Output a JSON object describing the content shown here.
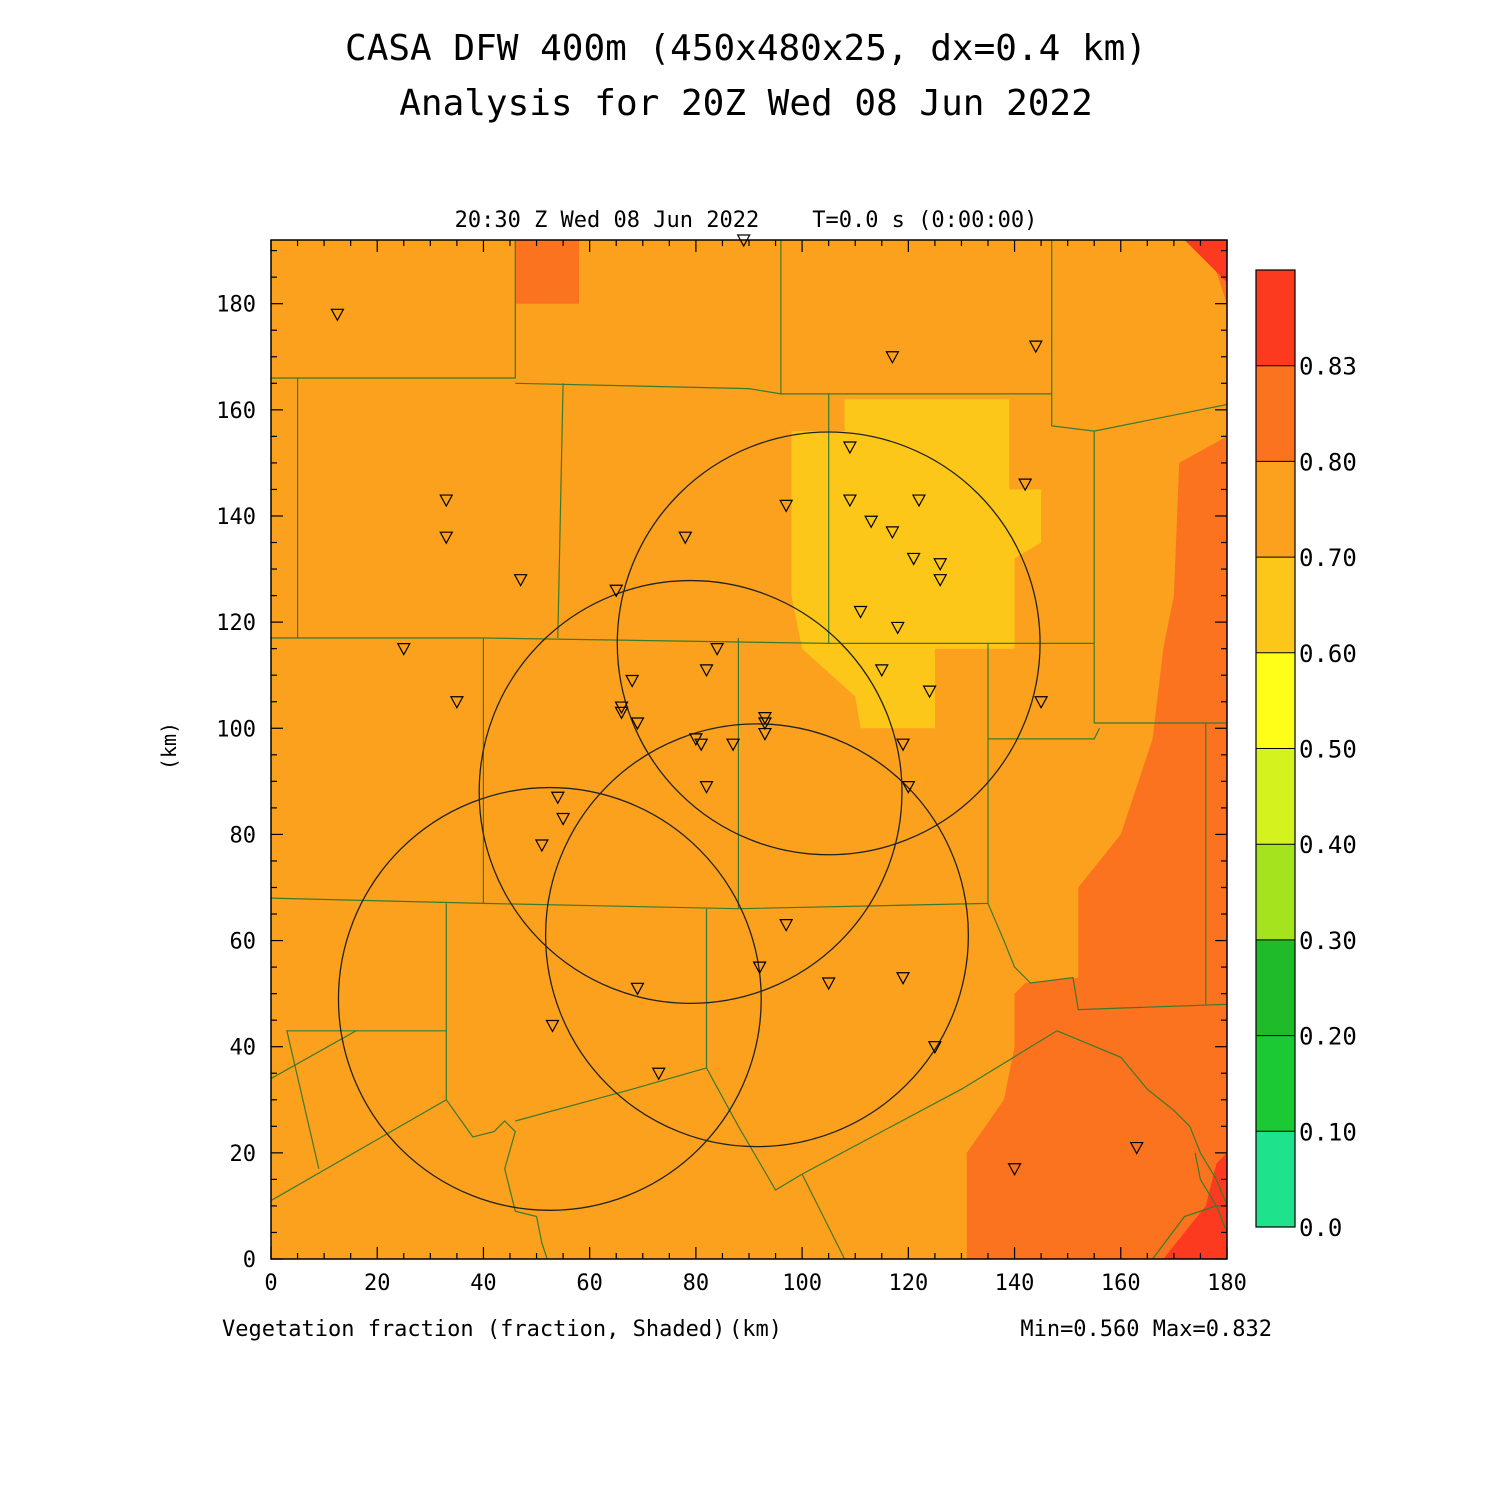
{
  "chart_data": {
    "type": "heatmap",
    "title": "CASA DFW 400m (450x480x25, dx=0.4 km)",
    "subtitle": "Analysis for 20Z Wed 08 Jun 2022",
    "time_label": "20:30 Z Wed 08 Jun 2022    T=0.0 s (0:00:00)",
    "xlabel": "(km)",
    "ylabel": "(km)",
    "field_label": "Vegetation fraction (fraction, Shaded)",
    "minmax_label": "Min=0.560 Max=0.832",
    "xlim": [
      0,
      180
    ],
    "ylim": [
      0,
      192
    ],
    "x_ticks": [
      "0",
      "20",
      "40",
      "60",
      "80",
      "100",
      "120",
      "140",
      "160",
      "180"
    ],
    "y_ticks": [
      "0",
      "20",
      "40",
      "60",
      "80",
      "100",
      "120",
      "140",
      "160",
      "180"
    ],
    "colorbar": {
      "labels": [
        "0.0",
        "0.10",
        "0.20",
        "0.30",
        "0.40",
        "0.50",
        "0.60",
        "0.70",
        "0.80",
        "0.83"
      ],
      "colors": [
        "#1ee38c",
        "#1bc935",
        "#1fbb2a",
        "#a5e31e",
        "#d4f21d",
        "#fefe19",
        "#fcc719",
        "#fba11d",
        "#fb721f",
        "#fc3a1f"
      ]
    },
    "regions": [
      {
        "level": "0.60-0.70",
        "color": "#fba11d",
        "note": "background"
      },
      {
        "level": "0.50-0.60",
        "color": "#fcc719",
        "polygon": [
          [
            98,
            156
          ],
          [
            108,
            156
          ],
          [
            108,
            162
          ],
          [
            139,
            162
          ],
          [
            139,
            145
          ],
          [
            145,
            145
          ],
          [
            145,
            135
          ],
          [
            140,
            132
          ],
          [
            140,
            115
          ],
          [
            125,
            115
          ],
          [
            125,
            100
          ],
          [
            111,
            100
          ],
          [
            110,
            106
          ],
          [
            100,
            115
          ],
          [
            98,
            125
          ],
          [
            98,
            145
          ],
          [
            98,
            150
          ]
        ]
      },
      {
        "level": "0.70-0.80",
        "color": "#fb721f",
        "polygon": [
          [
            46,
            192
          ],
          [
            58,
            192
          ],
          [
            58,
            180
          ],
          [
            46,
            180
          ]
        ]
      },
      {
        "level": "0.70-0.80",
        "color": "#fb721f",
        "polygon": [
          [
            131,
            0
          ],
          [
            131,
            20
          ],
          [
            138,
            30
          ],
          [
            140,
            40
          ],
          [
            140,
            50
          ],
          [
            142,
            52
          ],
          [
            152,
            53
          ],
          [
            152,
            70
          ],
          [
            160,
            80
          ],
          [
            166,
            98
          ],
          [
            168,
            115
          ],
          [
            170,
            125
          ],
          [
            171,
            150
          ],
          [
            180,
            155
          ],
          [
            180,
            180
          ],
          [
            176,
            192
          ],
          [
            180,
            192
          ],
          [
            180,
            0
          ]
        ]
      },
      {
        "level": "0.80-0.83",
        "color": "#fc3a1f",
        "polygon": [
          [
            168,
            0
          ],
          [
            172,
            5
          ],
          [
            176,
            10
          ],
          [
            178,
            18
          ],
          [
            180,
            20
          ],
          [
            180,
            0
          ]
        ]
      },
      {
        "level": "0.80-0.83",
        "color": "#fc3a1f",
        "polygon": [
          [
            172,
            192
          ],
          [
            180,
            192
          ],
          [
            180,
            184
          ],
          [
            176,
            188
          ]
        ]
      }
    ],
    "radar_rings": [
      {
        "cx": 52.5,
        "cy": 49,
        "r": 39.8
      },
      {
        "cx": 91.5,
        "cy": 61,
        "r": 39.8
      },
      {
        "cx": 79,
        "cy": 88,
        "r": 39.8
      },
      {
        "cx": 105,
        "cy": 116,
        "r": 39.8
      }
    ],
    "stations": [
      [
        12.5,
        178
      ],
      [
        89,
        192
      ],
      [
        117,
        170
      ],
      [
        144,
        172
      ],
      [
        33,
        143
      ],
      [
        33,
        136
      ],
      [
        47,
        128
      ],
      [
        78,
        136
      ],
      [
        97,
        142
      ],
      [
        109,
        153
      ],
      [
        109,
        143
      ],
      [
        113,
        139
      ],
      [
        117,
        137
      ],
      [
        122,
        143
      ],
      [
        121,
        132
      ],
      [
        126,
        131
      ],
      [
        126,
        128
      ],
      [
        142,
        146
      ],
      [
        111,
        122
      ],
      [
        118,
        119
      ],
      [
        65,
        126
      ],
      [
        25,
        115
      ],
      [
        35,
        105
      ],
      [
        84,
        115
      ],
      [
        68,
        109
      ],
      [
        82,
        111
      ],
      [
        66,
        104
      ],
      [
        66,
        103
      ],
      [
        69,
        101
      ],
      [
        93,
        102
      ],
      [
        93,
        101
      ],
      [
        93,
        99
      ],
      [
        124,
        107
      ],
      [
        115,
        111
      ],
      [
        145,
        105
      ],
      [
        80,
        98
      ],
      [
        81,
        97
      ],
      [
        87,
        97
      ],
      [
        119,
        97
      ],
      [
        82,
        89
      ],
      [
        120,
        89
      ],
      [
        54,
        87
      ],
      [
        55,
        83
      ],
      [
        51,
        78
      ],
      [
        97,
        63
      ],
      [
        92,
        55
      ],
      [
        119,
        53
      ],
      [
        105,
        52
      ],
      [
        69,
        51
      ],
      [
        53,
        44
      ],
      [
        125,
        40
      ],
      [
        73,
        35
      ],
      [
        140,
        17
      ],
      [
        163,
        21
      ]
    ]
  }
}
